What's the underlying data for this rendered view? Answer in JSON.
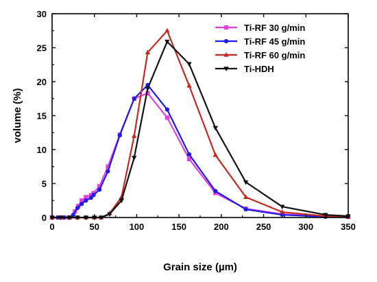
{
  "chart_data": {
    "type": "line",
    "title": "",
    "xlabel": "Grain size (µm)",
    "ylabel": "volume (%)",
    "xlim": [
      0,
      350
    ],
    "ylim": [
      0,
      30
    ],
    "xticks": [
      0,
      50,
      100,
      150,
      200,
      250,
      300,
      350
    ],
    "yticks": [
      0,
      5,
      10,
      15,
      20,
      25,
      30
    ],
    "grid": false,
    "legend_position": "top-right",
    "series": [
      {
        "name": "Ti-RF 30 g/min",
        "color": "#e23ee2",
        "marker": "square",
        "points": [
          [
            0,
            0
          ],
          [
            7,
            0
          ],
          [
            14,
            0
          ],
          [
            21,
            0
          ],
          [
            27,
            0.9
          ],
          [
            31,
            1.7
          ],
          [
            35,
            2.5
          ],
          [
            40,
            3.0
          ],
          [
            46,
            3.3
          ],
          [
            49,
            3.6
          ],
          [
            56,
            4.6
          ],
          [
            66,
            7.5
          ],
          [
            80,
            12.2
          ],
          [
            97,
            17.5
          ],
          [
            113,
            18.3
          ],
          [
            136,
            14.7
          ],
          [
            162,
            8.6
          ],
          [
            193,
            3.6
          ],
          [
            229,
            1.3
          ],
          [
            272,
            0.5
          ],
          [
            323,
            0.2
          ],
          [
            350,
            0.1
          ]
        ]
      },
      {
        "name": "Ti-RF 45 g/min",
        "color": "#1c1ce6",
        "marker": "circle",
        "points": [
          [
            0,
            0
          ],
          [
            7,
            0
          ],
          [
            14,
            0
          ],
          [
            21,
            0
          ],
          [
            25,
            0.4
          ],
          [
            30,
            1.4
          ],
          [
            35,
            2.0
          ],
          [
            40,
            2.5
          ],
          [
            46,
            2.9
          ],
          [
            49,
            3.3
          ],
          [
            56,
            4.1
          ],
          [
            66,
            6.8
          ],
          [
            80,
            12.1
          ],
          [
            97,
            17.5
          ],
          [
            113,
            19.5
          ],
          [
            136,
            15.9
          ],
          [
            162,
            9.3
          ],
          [
            193,
            3.9
          ],
          [
            229,
            1.2
          ],
          [
            272,
            0.4
          ],
          [
            323,
            0.1
          ],
          [
            350,
            0.1
          ]
        ]
      },
      {
        "name": "Ti-RF 60 g/min",
        "color": "#c42a1f",
        "marker": "triangle-up",
        "points": [
          [
            0,
            0
          ],
          [
            10,
            0
          ],
          [
            20,
            0
          ],
          [
            30,
            0
          ],
          [
            40,
            0
          ],
          [
            50,
            0
          ],
          [
            58,
            0
          ],
          [
            68,
            0.6
          ],
          [
            82,
            3.0
          ],
          [
            97,
            12.0
          ],
          [
            113,
            24.3
          ],
          [
            136,
            27.5
          ],
          [
            162,
            19.4
          ],
          [
            193,
            9.2
          ],
          [
            229,
            3.0
          ],
          [
            272,
            0.8
          ],
          [
            323,
            0.2
          ],
          [
            350,
            0.1
          ]
        ]
      },
      {
        "name": "Ti-HDH",
        "color": "#111111",
        "marker": "triangle-down",
        "points": [
          [
            0,
            0
          ],
          [
            10,
            0
          ],
          [
            20,
            0
          ],
          [
            30,
            0
          ],
          [
            40,
            0
          ],
          [
            50,
            0
          ],
          [
            58,
            0
          ],
          [
            68,
            0.5
          ],
          [
            82,
            2.5
          ],
          [
            97,
            8.8
          ],
          [
            113,
            19.0
          ],
          [
            136,
            25.9
          ],
          [
            162,
            22.6
          ],
          [
            193,
            13.2
          ],
          [
            229,
            5.2
          ],
          [
            272,
            1.6
          ],
          [
            323,
            0.4
          ],
          [
            350,
            0.2
          ]
        ]
      }
    ]
  }
}
